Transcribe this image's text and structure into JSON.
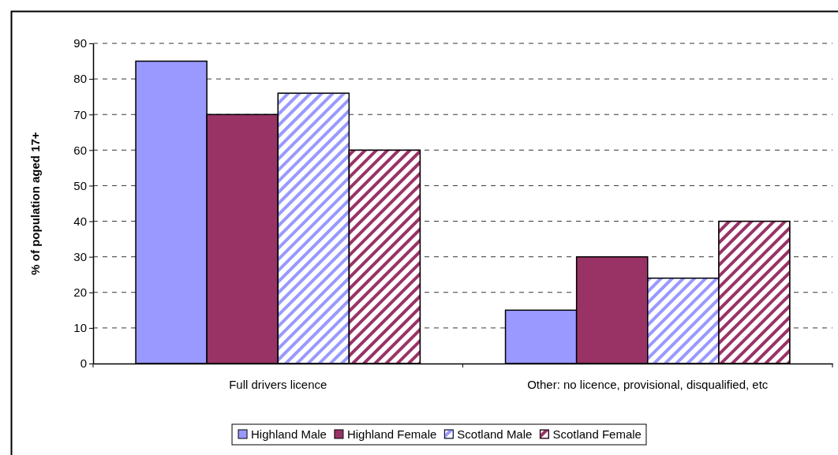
{
  "chart_data": {
    "type": "bar",
    "ylabel": "% of population aged 17+",
    "categories": [
      "Full drivers licence",
      "Other: no licence, provisional, disqualified, etc"
    ],
    "series": [
      {
        "name": "Highland Male",
        "color": "#9999ff",
        "values": [
          85,
          15
        ]
      },
      {
        "name": "Highland Female",
        "color": "#993366",
        "values": [
          70,
          30
        ]
      },
      {
        "name": "Scotland Male",
        "color": "#9999ff",
        "values": [
          76,
          24
        ]
      },
      {
        "name": "Scotland Female",
        "color": "#993366",
        "values": [
          60,
          40
        ]
      }
    ],
    "ylim": [
      0,
      90
    ],
    "yticks": [
      0,
      10,
      20,
      30,
      40,
      50,
      60,
      70,
      80,
      90
    ],
    "grid": "y",
    "legend": "bottom"
  }
}
